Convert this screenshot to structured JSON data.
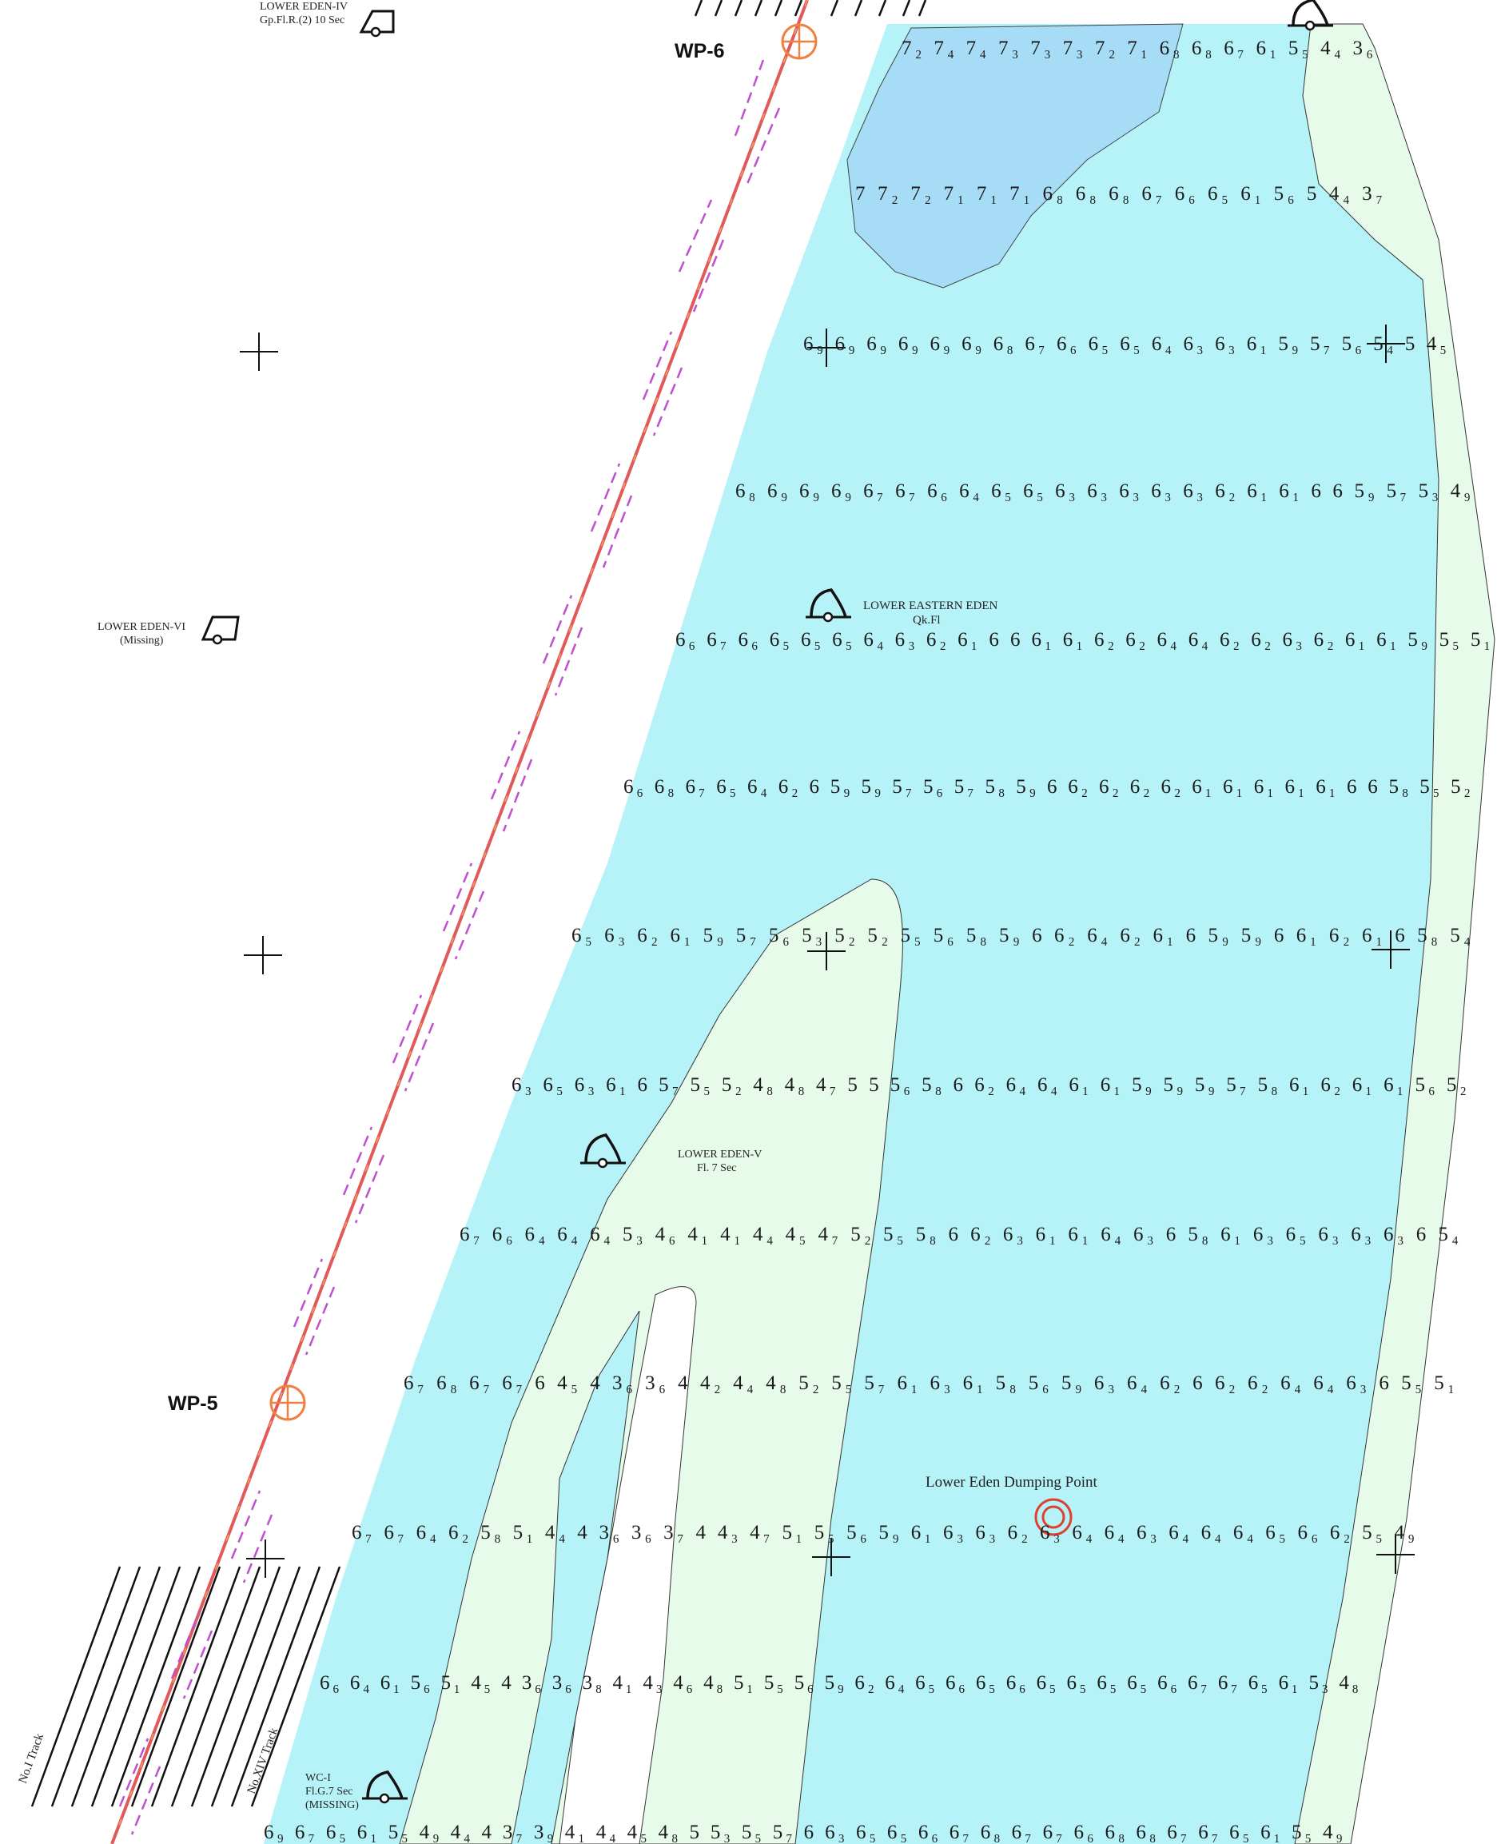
{
  "colors": {
    "deep_water": "#a6dcf5",
    "channel_water": "#b6f3f8",
    "shoal": "#e6fbe9",
    "track_line": "#e05a5a",
    "track_arrows": "#c050d0",
    "waypoint": "#f08040",
    "dump_point": "#e04030"
  },
  "waypoints": [
    {
      "id": "wp6",
      "label": "WP-6"
    },
    {
      "id": "wp5",
      "label": "WP-5"
    }
  ],
  "buoys": [
    {
      "id": "lower-eden-iv",
      "line1": "LOWER EDEN-IV",
      "line2": "Gp.Fl.R.(2) 10 Sec",
      "type": "can"
    },
    {
      "id": "lower-eden-vi",
      "line1": "LOWER EDEN-VI",
      "line2": "(Missing)",
      "type": "can"
    },
    {
      "id": "lower-eastern-eden",
      "line1": "LOWER EASTERN EDEN",
      "line2": "Qk.Fl",
      "type": "bell"
    },
    {
      "id": "lower-eden-v",
      "line1": "LOWER EDEN-V",
      "line2": "Fl. 7 Sec",
      "type": "bell"
    },
    {
      "id": "wc-i",
      "line1": "WC-I",
      "line2": "Fl.G.7 Sec",
      "line3": "(MISSING)",
      "type": "bell"
    },
    {
      "id": "top-right",
      "type": "bell"
    }
  ],
  "dump_point": {
    "label": "Lower Eden Dumping Point"
  },
  "tracks": [
    {
      "id": "no1",
      "label": "No.I Track"
    },
    {
      "id": "noxiv",
      "label": "No.XIV Track"
    }
  ],
  "sounding_rows": [
    "7₂ 7₄ 7₄ 7₃ 7₃ 7₃ 7₂ 7₁ 6₈ 6₈ 6₇ 6₁ 5₅ 4₄ 3₆",
    "7 7₂ 7₂ 7₁ 7₁ 7₁ 6₈ 6₈ 6₈ 6₇ 6₆ 6₅ 6₁ 5₆ 5 4₄ 3₇",
    "6₉ 6₉ 6₉ 6₉ 6₉ 6₉ 6₈ 6₇ 6₆ 6₅ 6₅ 6₄ 6₃ 6₃ 6₁ 5₉ 5₇ 5₆ 5₄ 5 4₅",
    "6₈ 6₉ 6₉ 6₉ 6₇ 6₇ 6₆ 6₄ 6₅ 6₅ 6₃ 6₃ 6₃ 6₃ 6₃ 6₂ 6₁ 6₁ 6 6 5₉ 5₇ 5₃ 4₉",
    "6₆ 6₇ 6₆ 6₅ 6₅ 6₅ 6₄ 6₃ 6₂ 6₁ 6 6 6₁ 6₁ 6₂ 6₂ 6₄ 6₄ 6₂ 6₂ 6₃ 6₂ 6₁ 6₁ 5₉ 5₅ 5₁",
    "6₆ 6₈ 6₇ 6₅ 6₄ 6₂ 6 5₉ 5₉ 5₇ 5₆ 5₇ 5₈ 5₉ 6 6₂ 6₂ 6₂ 6₂ 6₁ 6₁ 6₁ 6₁ 6₁ 6 6 5₈ 5₅ 5₂",
    "6₅ 6₃ 6₂ 6₁ 5₉ 5₇ 5₆ 5₃ 5₂ 5₂ 5₅ 5₆ 5₈ 5₉ 6 6₂ 6₄ 6₂ 6₁ 6 5₉ 5₉ 6 6₁ 6₂ 6₁ 6 5₈ 5₄",
    "6₃ 6₅ 6₃ 6₁ 6 5₇ 5₅ 5₂ 4₈ 4₈ 4₇ 5 5 5₆ 5₈ 6 6₂ 6₄ 6₄ 6₁ 6₁ 5₉ 5₉ 5₉ 5₇ 5₈ 6₁ 6₂ 6₁ 6₁ 5₆ 5₂",
    "6₇ 6₆ 6₄ 6₄ 6₄ 5₃ 4₆ 4₁ 4₁ 4₄ 4₅ 4₇ 5₂ 5₅ 5₈ 6 6₂ 6₃ 6₁ 6₁ 6₄ 6₃ 6 5₈ 6₁ 6₃ 6₅ 6₃ 6₃ 6₃ 6 5₄",
    "6₇ 6₈ 6₇ 6₇ 6 4₅ 4 3₆ 3₆ 4 4₂ 4₄ 4₈ 5₂ 5₅ 5₇ 6₁ 6₃ 6₁ 5₈ 5₆ 5₉ 6₃ 6₄ 6₂ 6 6₂ 6₂ 6₄ 6₄ 6₃ 6 5₅ 5₁",
    "6₇ 6₇ 6₄ 6₂ 5₈ 5₁ 4₄ 4 3₆ 3₆ 3₇ 4 4₃ 4₇ 5₁ 5₅ 5₆ 5₉ 6₁ 6₃ 6₃ 6₂ 6₃ 6₄ 6₄ 6₃ 6₄ 6₄ 6₄ 6₅ 6₆ 6₂ 5₅ 4₉",
    "6₆ 6₄ 6₁ 5₆ 5₁ 4₅ 4 3₆ 3₆ 3₈ 4₁ 4₃ 4₆ 4₈ 5₁ 5₅ 5₆ 5₉ 6₂ 6₄ 6₅ 6₆ 6₅ 6₆ 6₅ 6₅ 6₅ 6₅ 6₆ 6₇ 6₇ 6₅ 6₁ 5₃ 4₈",
    "6₉ 6₇ 6₅ 6₁ 5₅ 4₉ 4₄ 4 3₇ 3₉ 4₁ 4₄ 4₅ 4₈ 5 5₃ 5₅ 5₇ 6 6₃ 6₅ 6₅ 6₆ 6₇ 6₈ 6₇ 6₇ 6₆ 6₈ 6₈ 6₇ 6₇ 6₅ 6₁ 5₅ 4₉"
  ]
}
